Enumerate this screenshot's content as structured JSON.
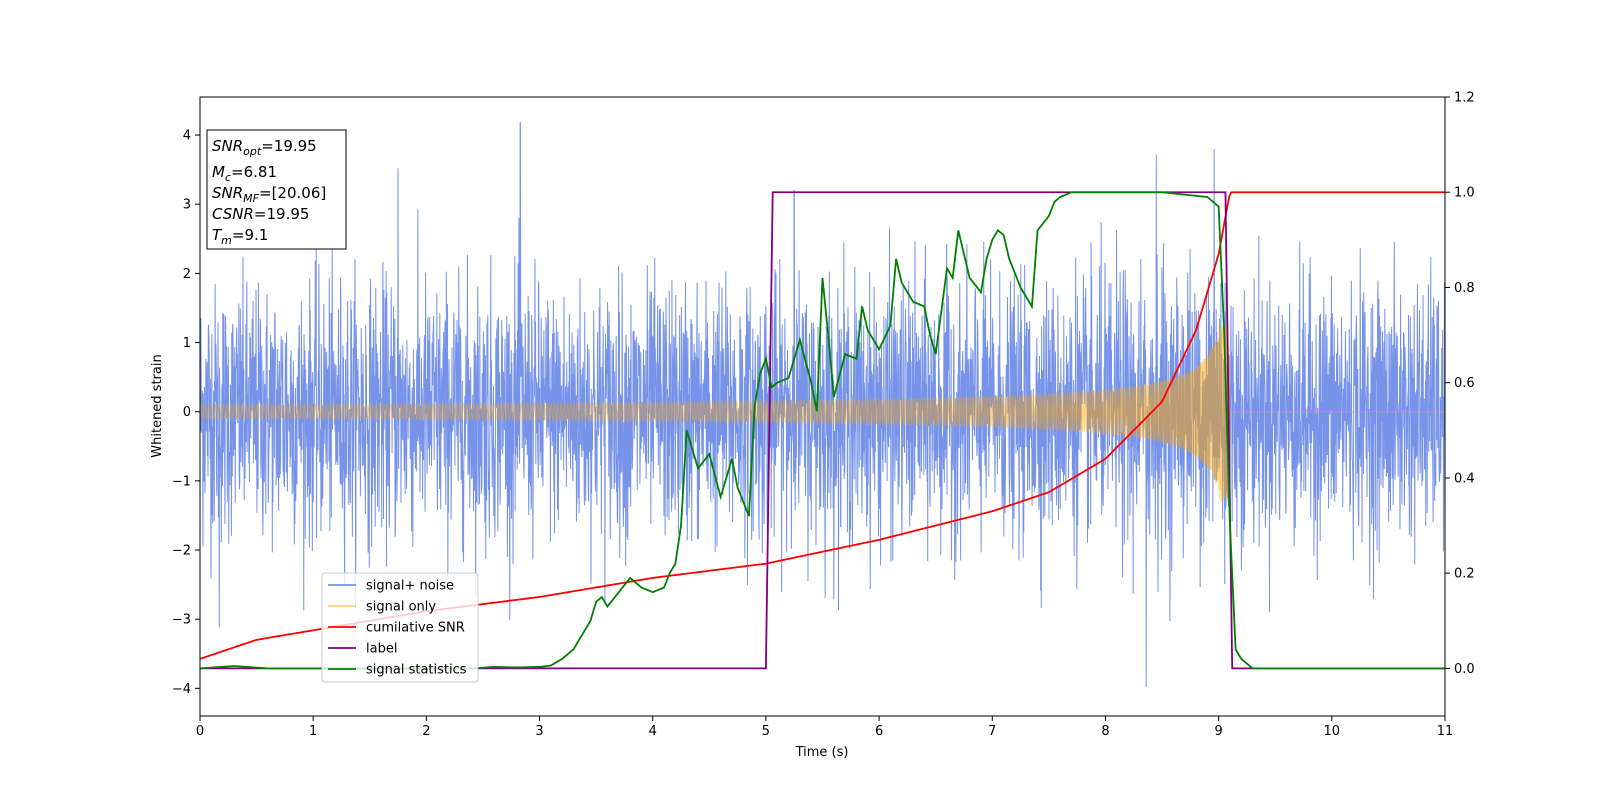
{
  "chart_data": {
    "type": "line",
    "title": "",
    "xlabel": "Time (s)",
    "ylabel": "Whitened strain",
    "ylabel_right": "",
    "xlim": [
      0,
      11
    ],
    "ylim": [
      -4.4,
      4.55
    ],
    "ylim_right": [
      -0.1,
      1.2
    ],
    "x_ticks": [
      0,
      1,
      2,
      3,
      4,
      5,
      6,
      7,
      8,
      9,
      10,
      11
    ],
    "y_ticks": [
      -4,
      -3,
      -2,
      -1,
      0,
      1,
      2,
      3,
      4
    ],
    "y_ticks_right": [
      0.0,
      0.2,
      0.4,
      0.6,
      0.8,
      1.0,
      1.2
    ],
    "grid": false,
    "legend_position": "lower-left",
    "annotation": {
      "lines": [
        {
          "var": "SNR",
          "sub": "opt",
          "value": "=19.95"
        },
        {
          "var": "M",
          "sub": "c",
          "value": "=6.81"
        },
        {
          "var": "SNR",
          "sub": "MF",
          "value": "=[20.06]"
        },
        {
          "var": "CSNR",
          "sub": "",
          "value": "=19.95"
        },
        {
          "var": "T",
          "sub": "m",
          "value": "=9.1"
        }
      ]
    },
    "series": [
      {
        "name": "signal+ noise",
        "color": "#4169e1",
        "axis": "left",
        "noise_sigma": 0.9,
        "extremes": [
          [
            2.83,
            4.18
          ],
          [
            8.36,
            -3.98
          ],
          [
            8.96,
            3.8
          ],
          [
            8.45,
            3.72
          ],
          [
            0.17,
            -3.12
          ],
          [
            1.75,
            3.52
          ],
          [
            5.25,
            3.2
          ]
        ]
      },
      {
        "name": "signal only",
        "color": "#ffa500",
        "axis": "left",
        "merger_time": 9.1,
        "start_amplitude": 0.1,
        "peak_amplitude": 1.3
      },
      {
        "name": "cumilative SNR",
        "color": "#ff0000",
        "axis": "right",
        "points": [
          [
            0,
            0.02
          ],
          [
            0.5,
            0.06
          ],
          [
            1,
            0.08
          ],
          [
            2,
            0.12
          ],
          [
            3,
            0.15
          ],
          [
            4,
            0.19
          ],
          [
            5,
            0.22
          ],
          [
            6,
            0.27
          ],
          [
            7,
            0.33
          ],
          [
            7.5,
            0.37
          ],
          [
            8,
            0.44
          ],
          [
            8.5,
            0.56
          ],
          [
            8.8,
            0.71
          ],
          [
            9.0,
            0.87
          ],
          [
            9.1,
            1.0
          ],
          [
            11,
            1.0
          ]
        ]
      },
      {
        "name": "label",
        "color": "#800080",
        "axis": "right",
        "points": [
          [
            0,
            0
          ],
          [
            5.0,
            0
          ],
          [
            5.06,
            1.0
          ],
          [
            9.06,
            1.0
          ],
          [
            9.12,
            0
          ],
          [
            11,
            0
          ]
        ]
      },
      {
        "name": "signal statistics",
        "color": "#008000",
        "axis": "right",
        "points": [
          [
            0,
            0
          ],
          [
            0.3,
            0.005
          ],
          [
            0.6,
            0.0
          ],
          [
            1.0,
            0.0
          ],
          [
            2.0,
            0.0
          ],
          [
            2.4,
            0.0
          ],
          [
            2.6,
            0.003
          ],
          [
            2.8,
            0.002
          ],
          [
            3.0,
            0.003
          ],
          [
            3.1,
            0.006
          ],
          [
            3.2,
            0.02
          ],
          [
            3.3,
            0.04
          ],
          [
            3.4,
            0.08
          ],
          [
            3.45,
            0.1
          ],
          [
            3.5,
            0.14
          ],
          [
            3.55,
            0.15
          ],
          [
            3.6,
            0.13
          ],
          [
            3.7,
            0.16
          ],
          [
            3.8,
            0.19
          ],
          [
            3.9,
            0.17
          ],
          [
            4.0,
            0.16
          ],
          [
            4.1,
            0.17
          ],
          [
            4.15,
            0.2
          ],
          [
            4.2,
            0.22
          ],
          [
            4.25,
            0.3
          ],
          [
            4.3,
            0.5
          ],
          [
            4.4,
            0.42
          ],
          [
            4.5,
            0.45
          ],
          [
            4.6,
            0.36
          ],
          [
            4.7,
            0.44
          ],
          [
            4.75,
            0.38
          ],
          [
            4.85,
            0.32
          ],
          [
            4.9,
            0.55
          ],
          [
            4.95,
            0.62
          ],
          [
            5.0,
            0.65
          ],
          [
            5.05,
            0.59
          ],
          [
            5.1,
            0.6
          ],
          [
            5.2,
            0.61
          ],
          [
            5.3,
            0.69
          ],
          [
            5.4,
            0.6
          ],
          [
            5.45,
            0.54
          ],
          [
            5.5,
            0.82
          ],
          [
            5.55,
            0.7
          ],
          [
            5.6,
            0.57
          ],
          [
            5.7,
            0.66
          ],
          [
            5.8,
            0.65
          ],
          [
            5.85,
            0.76
          ],
          [
            5.9,
            0.71
          ],
          [
            6.0,
            0.67
          ],
          [
            6.1,
            0.72
          ],
          [
            6.15,
            0.86
          ],
          [
            6.2,
            0.81
          ],
          [
            6.3,
            0.77
          ],
          [
            6.4,
            0.76
          ],
          [
            6.45,
            0.7
          ],
          [
            6.5,
            0.66
          ],
          [
            6.6,
            0.84
          ],
          [
            6.65,
            0.82
          ],
          [
            6.7,
            0.92
          ],
          [
            6.8,
            0.82
          ],
          [
            6.9,
            0.79
          ],
          [
            6.95,
            0.86
          ],
          [
            7.0,
            0.9
          ],
          [
            7.05,
            0.92
          ],
          [
            7.1,
            0.91
          ],
          [
            7.15,
            0.86
          ],
          [
            7.25,
            0.8
          ],
          [
            7.3,
            0.78
          ],
          [
            7.35,
            0.76
          ],
          [
            7.4,
            0.92
          ],
          [
            7.5,
            0.95
          ],
          [
            7.55,
            0.98
          ],
          [
            7.6,
            0.99
          ],
          [
            7.7,
            1.0
          ],
          [
            8.0,
            1.0
          ],
          [
            8.5,
            1.0
          ],
          [
            8.9,
            0.99
          ],
          [
            9.0,
            0.97
          ],
          [
            9.05,
            0.7
          ],
          [
            9.1,
            0.3
          ],
          [
            9.15,
            0.04
          ],
          [
            9.2,
            0.02
          ],
          [
            9.3,
            0.0
          ],
          [
            11,
            0.0
          ]
        ]
      }
    ]
  }
}
